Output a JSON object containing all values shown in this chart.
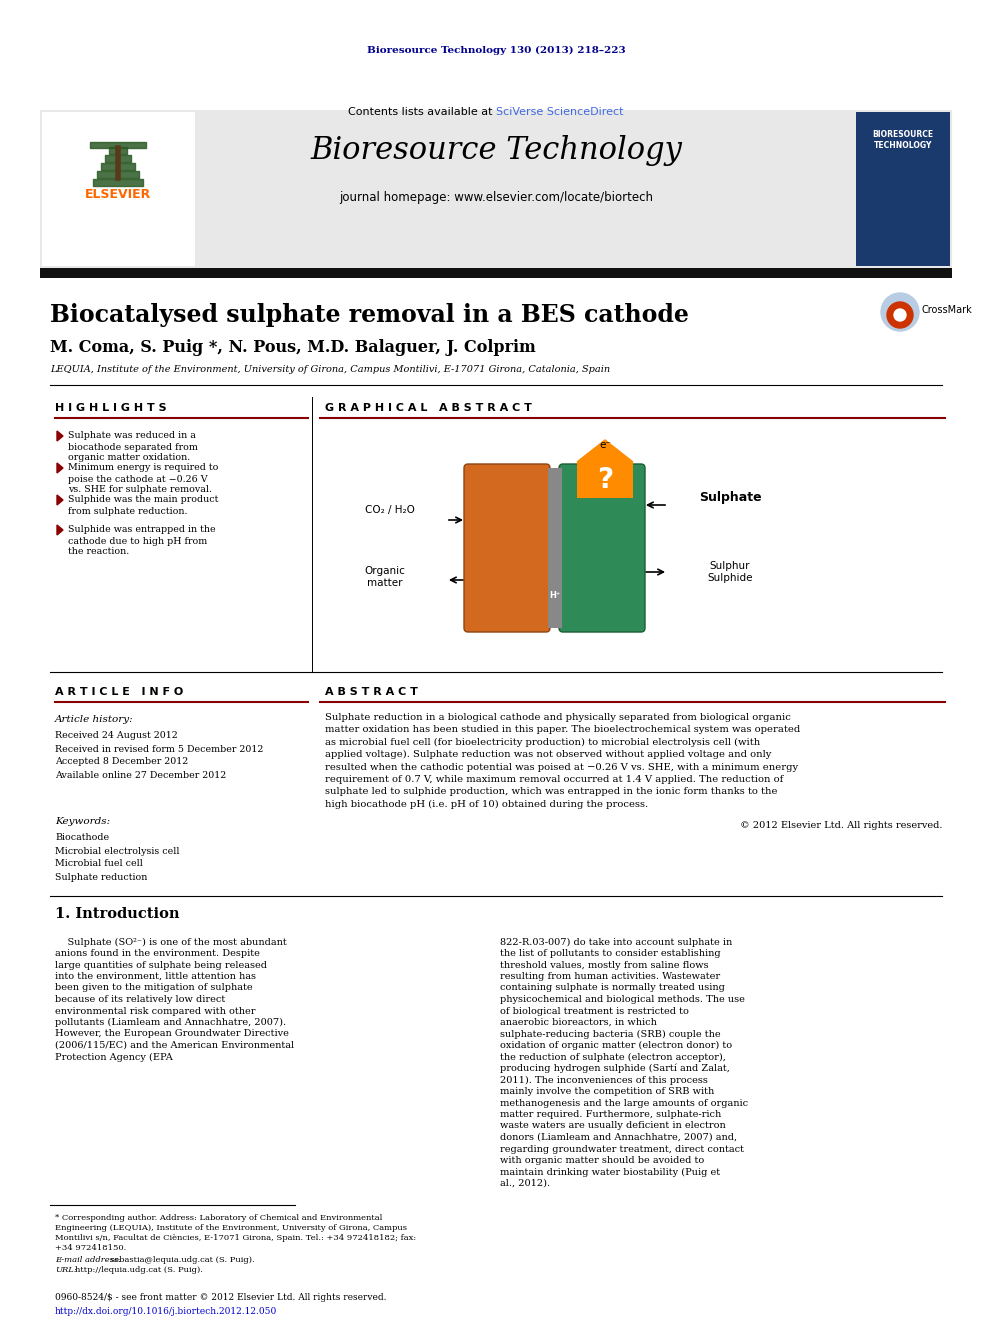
{
  "page_bg": "#ffffff",
  "top_journal_text": "Bioresource Technology 130 (2013) 218–223",
  "top_journal_color": "#00008B",
  "header_bg": "#e8e8e8",
  "header_contents_text": "Contents lists available at ",
  "header_sciverse_text": "SciVerse ScienceDirect",
  "header_sciverse_color": "#4169e1",
  "header_journal_title": "Bioresource Technology",
  "header_homepage_text": "journal homepage: www.elsevier.com/locate/biortech",
  "article_title": "Biocatalysed sulphate removal in a BES cathode",
  "authors": "M. Coma, S. Puig *, N. Pous, M.D. Balaguer, J. Colprim",
  "affiliation": "LEQUIA, Institute of the Environment, University of Girona, Campus Montilivi, E-17071 Girona, Catalonia, Spain",
  "highlights_title": "H I G H L I G H T S",
  "graphical_abstract_title": "G R A P H I C A L   A B S T R A C T",
  "highlights": [
    "Sulphate was reduced in a biocathode separated from organic matter oxidation.",
    "Minimum energy is required to poise the cathode at −0.26 V vs. SHE for sulphate removal.",
    "Sulphide was the main product from sulphate reduction.",
    "Sulphide was entrapped in the cathode due to high pH from the reaction."
  ],
  "article_info_title": "A R T I C L E   I N F O",
  "abstract_title": "A B S T R A C T",
  "article_history_title": "Article history:",
  "article_history": [
    "Received 24 August 2012",
    "Received in revised form 5 December 2012",
    "Accepted 8 December 2012",
    "Available online 27 December 2012"
  ],
  "keywords_title": "Keywords:",
  "keywords": [
    "Biocathode",
    "Microbial electrolysis cell",
    "Microbial fuel cell",
    "Sulphate reduction"
  ],
  "abstract_text": "Sulphate reduction in a biological cathode and physically separated from biological organic matter oxidation has been studied in this paper. The bioelectrochemical system was operated as microbial fuel cell (for bioelectricity production) to microbial electrolysis cell (with applied voltage). Sulphate reduction was not observed without applied voltage and only resulted when the cathodic potential was poised at −0.26 V vs. SHE, with a minimum energy requirement of 0.7 V, while maximum removal occurred at 1.4 V applied. The reduction of sulphate led to sulphide production, which was entrapped in the ionic form thanks to the high biocathode pH (i.e. pH of 10) obtained during the process.",
  "copyright_text": "© 2012 Elsevier Ltd. All rights reserved.",
  "intro_section_title": "1. Introduction",
  "intro_col1_text": "Sulphate (SO²⁻) is one of the most abundant anions found in the environment. Despite large quantities of sulphate being released into the environment, little attention has been given to the mitigation of sulphate because of its relatively low direct environmental risk compared with other pollutants (Liamleam and Annachhatre, 2007). However, the European Groundwater Directive (2006/115/EC) and the American Environmental Protection Agency (EPA",
  "intro_col2_text": "822-R.03-007) do take into account sulphate in the list of pollutants to consider establishing threshold values, mostly from saline flows resulting from human activities. Wastewater containing sulphate is normally treated using physicochemical and biological methods. The use of biological treatment is restricted to anaerobic bioreactors, in which sulphate-reducing bacteria (SRB) couple the oxidation of organic matter (electron donor) to the reduction of sulphate (electron acceptor), producing hydrogen sulphide (Sartí and Zalat, 2011). The inconveniences of this process mainly involve the competition of SRB with methanogenesis and the large amounts of organic matter required. Furthermore, sulphate-rich waste waters are usually deficient in electron donors (Liamleam and Annachhatre, 2007) and, regarding groundwater treatment, direct contact with organic matter should be avoided to maintain drinking water biostability (Puig et al., 2012).",
  "footnote_text1": "* Corresponding author. Address: Laboratory of Chemical and Environmental",
  "footnote_text2": "Engineering (LEQUIA), Institute of the Environment, University of Girona, Campus",
  "footnote_text3": "Montilivi s/n, Facultat de Ciències, E-17071 Girona, Spain. Tel.: +34 972418182; fax:",
  "footnote_text4": "+34 972418150.",
  "email_label": "E-mail address:",
  "email_text": "sebastia@lequia.udg.cat (S. Puig).",
  "url_label": "URL:",
  "url_text": "http://lequia.udg.cat (S. Puig).",
  "issn_text": "0960-8524/$ - see front matter © 2012 Elsevier Ltd. All rights reserved.",
  "doi_text": "http://dx.doi.org/10.1016/j.biortech.2012.12.050",
  "elsevier_color": "#FF6600",
  "section_line_color": "#8B0000",
  "highlight_bullet_color": "#8B0000",
  "anode_color": "#D2691E",
  "cathode_color": "#2E8B57",
  "membrane_color": "#888888",
  "orange_icon_color": "#FF8C00",
  "cover_bg_color": "#1a3a6e"
}
